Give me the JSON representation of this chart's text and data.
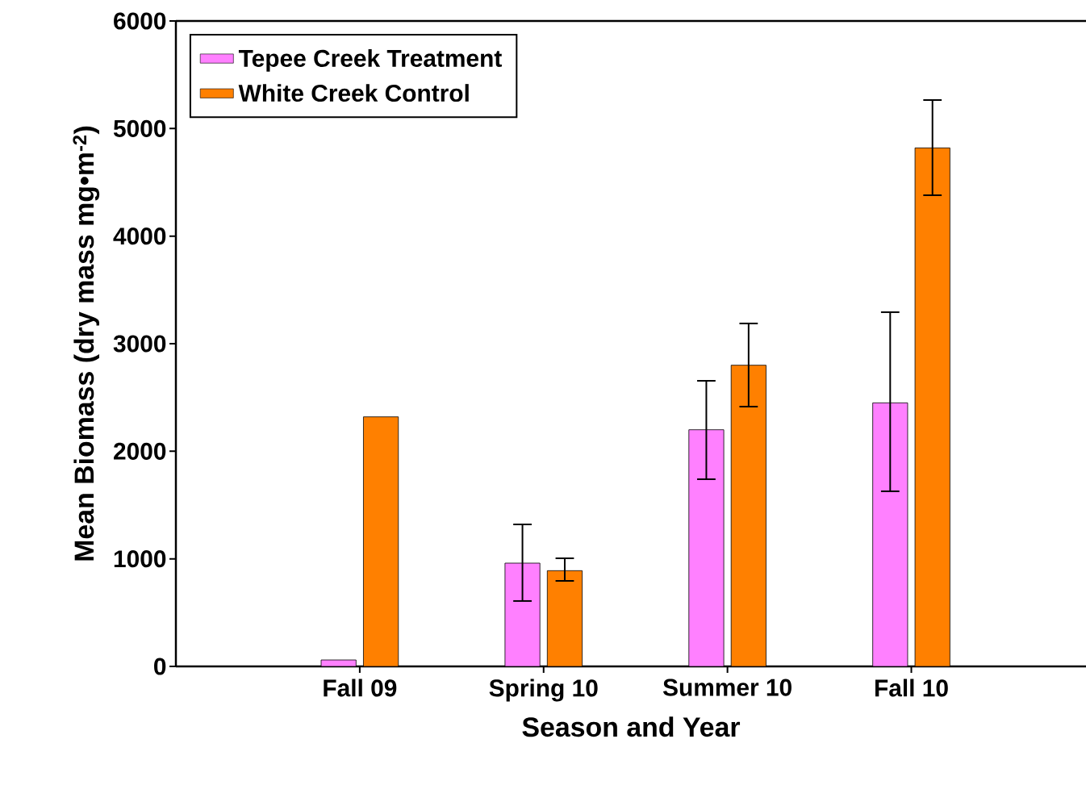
{
  "chart_data": {
    "type": "bar",
    "xlabel": "Season and Year",
    "ylabel": "Mean Biomass (dry mass mg•m$^{-2}$)",
    "categories": [
      "Fall 09",
      "Spring 10",
      "Summer 10",
      "Fall 10"
    ],
    "series": [
      {
        "name": "Tepee Creek Treatment",
        "color": "#ff80ff",
        "values": [
          60,
          960,
          2200,
          2450
        ],
        "errors": [
          null,
          [
            608,
            1320
          ],
          [
            1740,
            2655
          ],
          [
            1628,
            3293
          ]
        ]
      },
      {
        "name": "White Creek Control",
        "color": "#ff8000",
        "values": [
          2320,
          890,
          2800,
          4820
        ],
        "errors": [
          null,
          [
            795,
            1005
          ],
          [
            2415,
            3188
          ],
          [
            4380,
            5265
          ]
        ]
      }
    ],
    "ylim": [
      0,
      6000
    ],
    "yticks": [
      0,
      1000,
      2000,
      3000,
      4000,
      5000,
      6000
    ],
    "grid": false,
    "legend": "top left"
  }
}
